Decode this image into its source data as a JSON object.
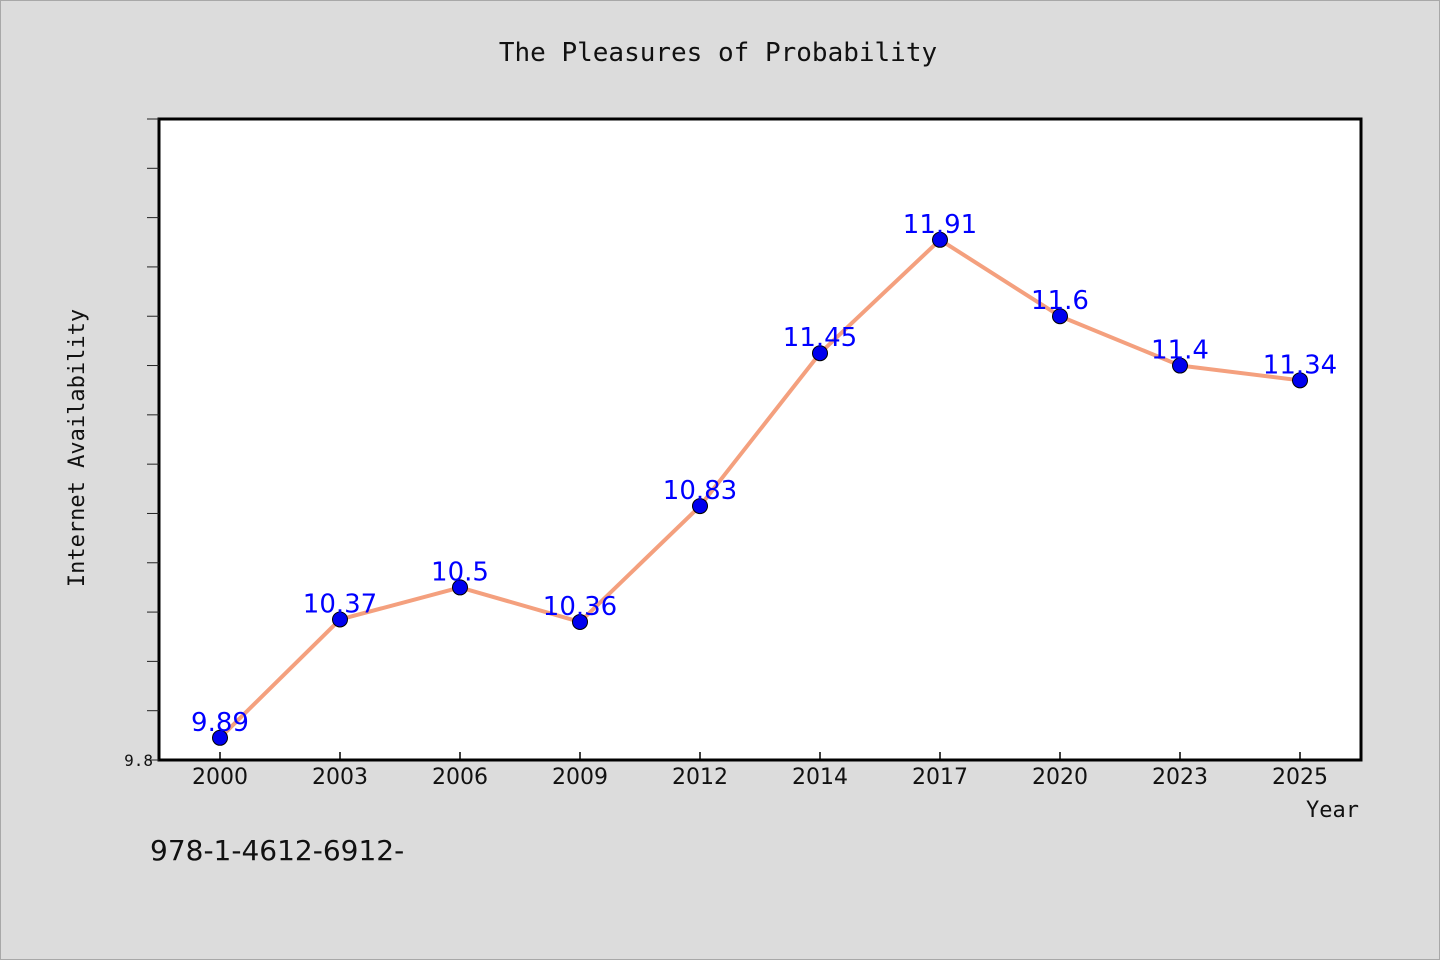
{
  "footnote": "978-1-4612-6912-",
  "chart_data": {
    "type": "line",
    "title": "The Pleasures of Probability",
    "xlabel": "Year",
    "ylabel": "Internet Availability",
    "categories": [
      "2000",
      "2003",
      "2006",
      "2009",
      "2012",
      "2014",
      "2017",
      "2020",
      "2023",
      "2025"
    ],
    "series": [
      {
        "values": [
          9.89,
          10.37,
          10.5,
          10.36,
          10.83,
          11.45,
          11.91,
          11.6,
          11.4,
          11.34
        ],
        "labels": [
          "9.89",
          "10.37",
          "10.5",
          "10.36",
          "10.83",
          "11.45",
          "11.91",
          "11.6",
          "11.4",
          "11.34"
        ]
      }
    ],
    "ylim": [
      9.8,
      12.4
    ],
    "y_tick_labels": [
      "9.8"
    ],
    "grid": false,
    "legend": "none",
    "colors": {
      "line": "#f4a07e",
      "marker": "#0000ee",
      "data_label": "#0000ff",
      "plot_background": "#ffffff",
      "page_background": "#dcdcdc"
    }
  }
}
